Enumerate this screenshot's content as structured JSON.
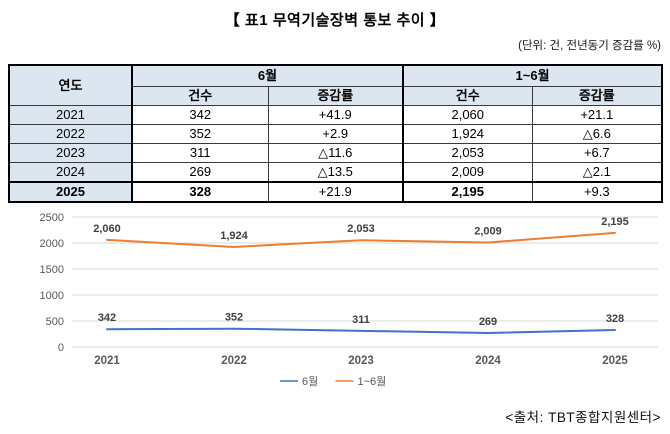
{
  "title": "【 표1 무역기술장벽 통보 추이 】",
  "unit_note": "(단위: 건, 전년동기 증감률 %)",
  "source": "<출처: TBT종합지원센터>",
  "table": {
    "col_year": "연도",
    "group_june": "6월",
    "group_jan_june": "1~6월",
    "sub_count": "건수",
    "sub_rate": "증감률",
    "rows": [
      {
        "year": "2021",
        "june_count": "342",
        "june_rate": "+41.9",
        "cum_count": "2,060",
        "cum_rate": "+21.1"
      },
      {
        "year": "2022",
        "june_count": "352",
        "june_rate": "+2.9",
        "cum_count": "1,924",
        "cum_rate": "△6.6"
      },
      {
        "year": "2023",
        "june_count": "311",
        "june_rate": "△11.6",
        "cum_count": "2,053",
        "cum_rate": "+6.7"
      },
      {
        "year": "2024",
        "june_count": "269",
        "june_rate": "△13.5",
        "cum_count": "2,009",
        "cum_rate": "△2.1"
      },
      {
        "year": "2025",
        "june_count": "328",
        "june_rate": "+21.9",
        "cum_count": "2,195",
        "cum_rate": "+9.3"
      }
    ]
  },
  "chart_data": {
    "type": "line",
    "x": [
      "2021",
      "2022",
      "2023",
      "2024",
      "2025"
    ],
    "series": [
      {
        "name": "6월",
        "color": "#4472C4",
        "values": [
          342,
          352,
          311,
          269,
          328
        ],
        "labels": [
          "342",
          "352",
          "311",
          "269",
          "328"
        ]
      },
      {
        "name": "1~6월",
        "color": "#ED7D31",
        "values": [
          2060,
          1924,
          2053,
          2009,
          2195
        ],
        "labels": [
          "2,060",
          "1,924",
          "2,053",
          "2,009",
          "2,195"
        ]
      }
    ],
    "y_ticks": [
      0,
      500,
      1000,
      1500,
      2000,
      2500
    ],
    "ylim": [
      0,
      2500
    ],
    "grid": true,
    "legend_position": "bottom",
    "title": "",
    "xlabel": "",
    "ylabel": ""
  },
  "colors": {
    "series_june": "#4472C4",
    "series_jan_june": "#ED7D31",
    "table_header_bg": "#dce6f1",
    "gridline": "#d9d9d9",
    "axis_text": "#595959",
    "data_label_text": "#404040"
  }
}
